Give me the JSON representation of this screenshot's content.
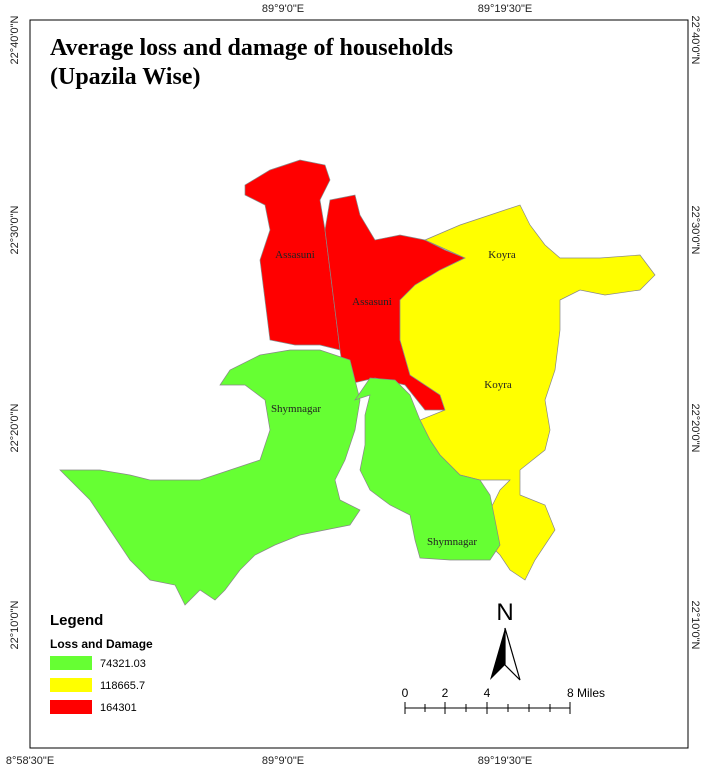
{
  "map": {
    "title_lines": [
      "Average loss and damage of households",
      "(Upazila Wise)"
    ],
    "top_longitudes": [
      "89°9'0\"E",
      "89°19'30\"E"
    ],
    "bottom_longitudes": [
      "8°58'30\"E",
      "89°9'0\"E",
      "89°19'30\"E"
    ],
    "left_latitudes": [
      "22°40'0\"N",
      "22°30'0\"N",
      "22°20'0\"N",
      "22°10'0\"N"
    ],
    "right_latitudes": [
      "22°40'0\"N",
      "22°30'0\"N",
      "22°20'0\"N",
      "22°10'0\"N"
    ],
    "region_labels": [
      "Assasuni",
      "Assasuni",
      "Koyra",
      "Koyra",
      "Shymnagar",
      "Shymnagar"
    ],
    "legend": {
      "title": "Legend",
      "subtitle": "Loss and Damage",
      "items": [
        {
          "value": 74321.03,
          "color": "#66ff33"
        },
        {
          "value": 118665.7,
          "color": "#ffff00"
        },
        {
          "value": 164301,
          "color": "#ff0000"
        }
      ]
    },
    "north": "N",
    "scale_labels": [
      "0",
      "2",
      "4",
      "8 Miles"
    ]
  }
}
